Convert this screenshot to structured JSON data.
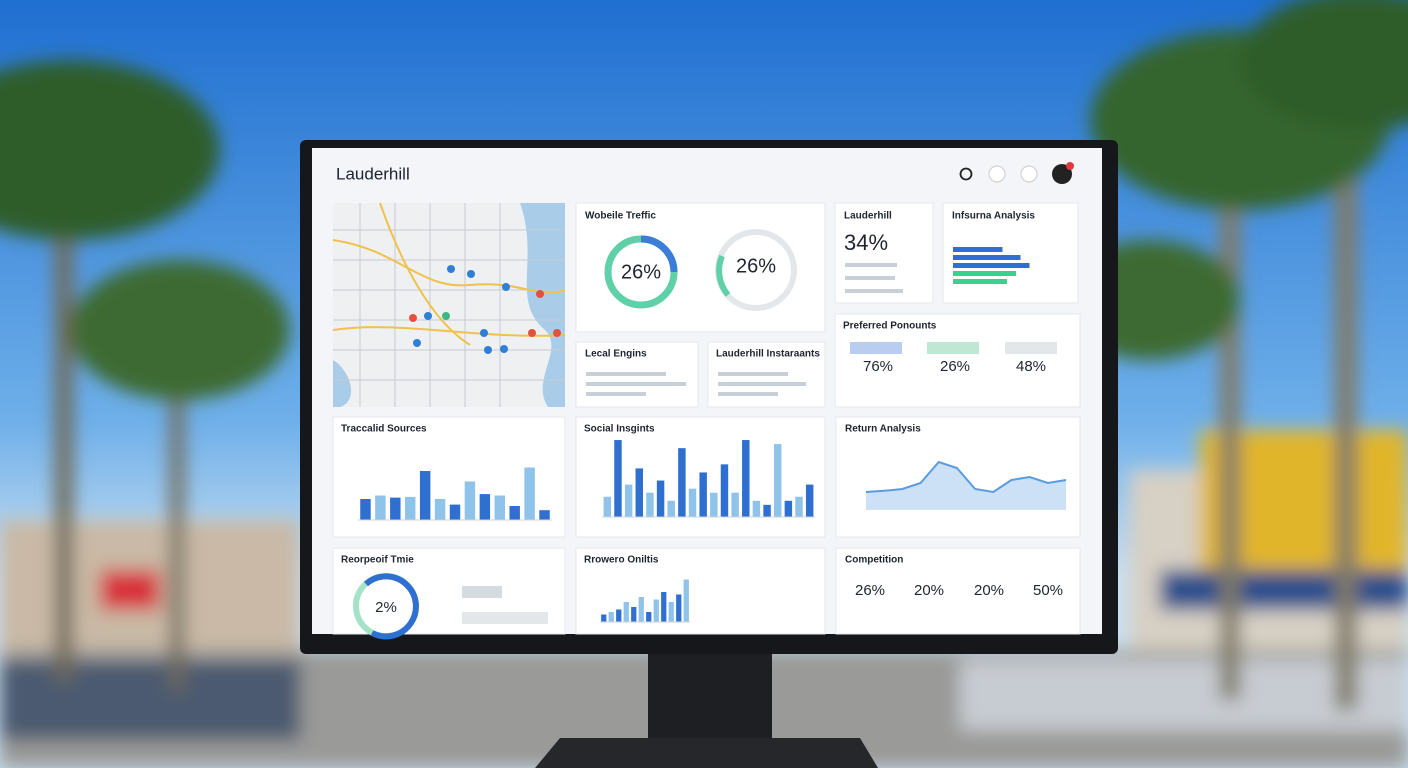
{
  "header": {
    "title": "Lauderhill"
  },
  "panels": {
    "website_traffic": {
      "title": "Wobeile Treffic",
      "kpis": [
        "26%",
        "26%"
      ]
    },
    "summary": {
      "title": "Lauderhill",
      "kpi": "34%"
    },
    "insurance": {
      "title": "Infsurna Analysis",
      "values": [
        55,
        75,
        85,
        70,
        60
      ],
      "xlim": [
        0,
        100
      ],
      "colors": [
        "#2f6fd0",
        "#3ccf8e"
      ]
    },
    "local": {
      "title": "Lecal Engins"
    },
    "restaurants": {
      "title": "Lauderhill Instaraants"
    },
    "preferred": {
      "title": "Preferred Ponounts",
      "kpis": [
        "76%",
        "26%",
        "48%"
      ]
    },
    "traffic_sources": {
      "title": "Traccalid Sources",
      "values": [
        30,
        35,
        32,
        33,
        70,
        30,
        22,
        55,
        37,
        35,
        20,
        75,
        14
      ],
      "ylim": [
        0,
        100
      ],
      "colors": [
        "#2f6fd0",
        "#8fc3ea"
      ]
    },
    "social": {
      "title": "Social Insgints",
      "values": [
        25,
        95,
        40,
        60,
        30,
        45,
        20,
        85,
        35,
        55,
        30,
        65,
        30,
        95,
        20,
        15,
        90,
        20,
        25,
        40
      ],
      "ylim": [
        0,
        100
      ],
      "colors": [
        "#8fc3ea",
        "#2f6fd0"
      ]
    },
    "return": {
      "title": "Return Analysis",
      "values": [
        30,
        32,
        35,
        45,
        80,
        70,
        35,
        30,
        50,
        55,
        45,
        50
      ],
      "ylim": [
        0,
        100
      ],
      "color": "#5a9be0"
    },
    "time": {
      "title": "Reorpeoif Tmie",
      "kpi": "2%"
    },
    "browser": {
      "title": "Rrowero Oniltis",
      "values": [
        15,
        20,
        25,
        40,
        30,
        50,
        20,
        45,
        60,
        40,
        55,
        85
      ],
      "ylim": [
        0,
        100
      ],
      "colors": [
        "#2f6fd0",
        "#8fc3ea"
      ]
    },
    "competition": {
      "title": "Competition",
      "kpis": [
        "26%",
        "20%",
        "20%",
        "50%"
      ]
    }
  }
}
